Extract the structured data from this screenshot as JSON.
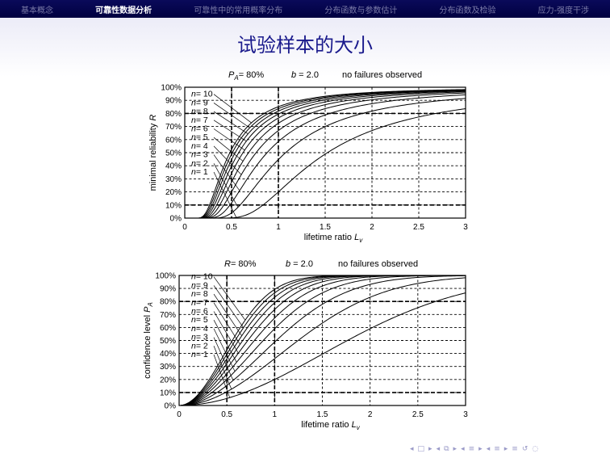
{
  "navbar": {
    "items": [
      {
        "label": "基本概念",
        "active": false
      },
      {
        "label": "可靠性数据分析",
        "active": true
      },
      {
        "label": "可靠性中的常用概率分布",
        "active": false
      },
      {
        "label": "分布函数与参数估计",
        "active": false
      },
      {
        "label": "分布函数及检验",
        "active": false
      },
      {
        "label": "应力-强度干涉",
        "active": false
      }
    ]
  },
  "frame": {
    "title": "试验样本的大小"
  },
  "chart_data": [
    {
      "type": "line",
      "header": {
        "left_var": "P",
        "left_sub": "A",
        "left_val": "= 80%",
        "mid_var": "b",
        "mid_val": " = 2.0",
        "right": "no failures observed"
      },
      "confidence": 0.8,
      "b": 2.0,
      "ylabel_text": "minimal reliability ",
      "ylabel_var": "R",
      "ylabel_sub": "",
      "xlabel_text": "lifetime ratio ",
      "xlabel_var": "L",
      "xlabel_sub": "v",
      "xlim": [
        0,
        3
      ],
      "ylim": [
        0,
        100
      ],
      "x_ticks": [
        "0",
        "0.5",
        "1",
        "1.5",
        "2",
        "2.5",
        "3"
      ],
      "y_ticks": [
        "0%",
        "10%",
        "20%",
        "30%",
        "40%",
        "50%",
        "60%",
        "70%",
        "80%",
        "90%",
        "100%"
      ],
      "grid": true,
      "series": [
        {
          "name": "n = 1",
          "n": 1,
          "var": "n",
          "label": "= 1"
        },
        {
          "name": "n = 2",
          "n": 2,
          "var": "n",
          "label": "= 2"
        },
        {
          "name": "n = 3",
          "n": 3,
          "var": "n",
          "label": "= 3"
        },
        {
          "name": "n = 4",
          "n": 4,
          "var": "n",
          "label": "= 4"
        },
        {
          "name": "n = 5",
          "n": 5,
          "var": "n",
          "label": "= 5"
        },
        {
          "name": "n = 6",
          "n": 6,
          "var": "n",
          "label": "= 6"
        },
        {
          "name": "n = 7",
          "n": 7,
          "var": "n",
          "label": "= 7"
        },
        {
          "name": "n = 8",
          "n": 8,
          "var": "n",
          "label": "= 8"
        },
        {
          "name": "n = 9",
          "n": 9,
          "var": "n",
          "label": "= 9"
        },
        {
          "name": "n = 10",
          "n": 10,
          "var": "n",
          "label": "= 10"
        }
      ]
    },
    {
      "type": "line",
      "header": {
        "left_var": "R",
        "left_sub": "",
        "left_val": "= 80%",
        "mid_var": "b",
        "mid_val": " = 2.0",
        "right": "no failures observed"
      },
      "reliability": 0.8,
      "b": 2.0,
      "ylabel_text": "confidence level ",
      "ylabel_var": "P",
      "ylabel_sub": "A",
      "xlabel_text": "lifetime ratio ",
      "xlabel_var": "L",
      "xlabel_sub": "v",
      "xlim": [
        0,
        3
      ],
      "ylim": [
        0,
        100
      ],
      "x_ticks": [
        "0",
        "0.5",
        "1",
        "1.5",
        "2",
        "2.5",
        "3"
      ],
      "y_ticks": [
        "0%",
        "10%",
        "20%",
        "30%",
        "40%",
        "50%",
        "60%",
        "70%",
        "80%",
        "90%",
        "100%"
      ],
      "grid": true,
      "series": [
        {
          "name": "n = 1",
          "n": 1,
          "var": "n",
          "label": "= 1"
        },
        {
          "name": "n = 2",
          "n": 2,
          "var": "n",
          "label": "= 2"
        },
        {
          "name": "n = 3",
          "n": 3,
          "var": "n",
          "label": "= 3"
        },
        {
          "name": "n = 4",
          "n": 4,
          "var": "n",
          "label": "= 4"
        },
        {
          "name": "n = 5",
          "n": 5,
          "var": "n",
          "label": "= 5"
        },
        {
          "name": "n = 6",
          "n": 6,
          "var": "n",
          "label": "= 6"
        },
        {
          "name": "n = 7",
          "n": 7,
          "var": "n",
          "label": "= 7"
        },
        {
          "name": "n = 8",
          "n": 8,
          "var": "n",
          "label": "= 8"
        },
        {
          "name": "n = 9",
          "n": 9,
          "var": "n",
          "label": "= 9"
        },
        {
          "name": "n = 10",
          "n": 10,
          "var": "n",
          "label": "= 10"
        }
      ]
    }
  ],
  "beamer_nav": {
    "icons": [
      "◂",
      "□",
      "▸",
      "◂",
      "⧉",
      "▸",
      "◂",
      "≡",
      "▸",
      "◂",
      "≡",
      "▸",
      "≡",
      "↺",
      "◌"
    ]
  }
}
